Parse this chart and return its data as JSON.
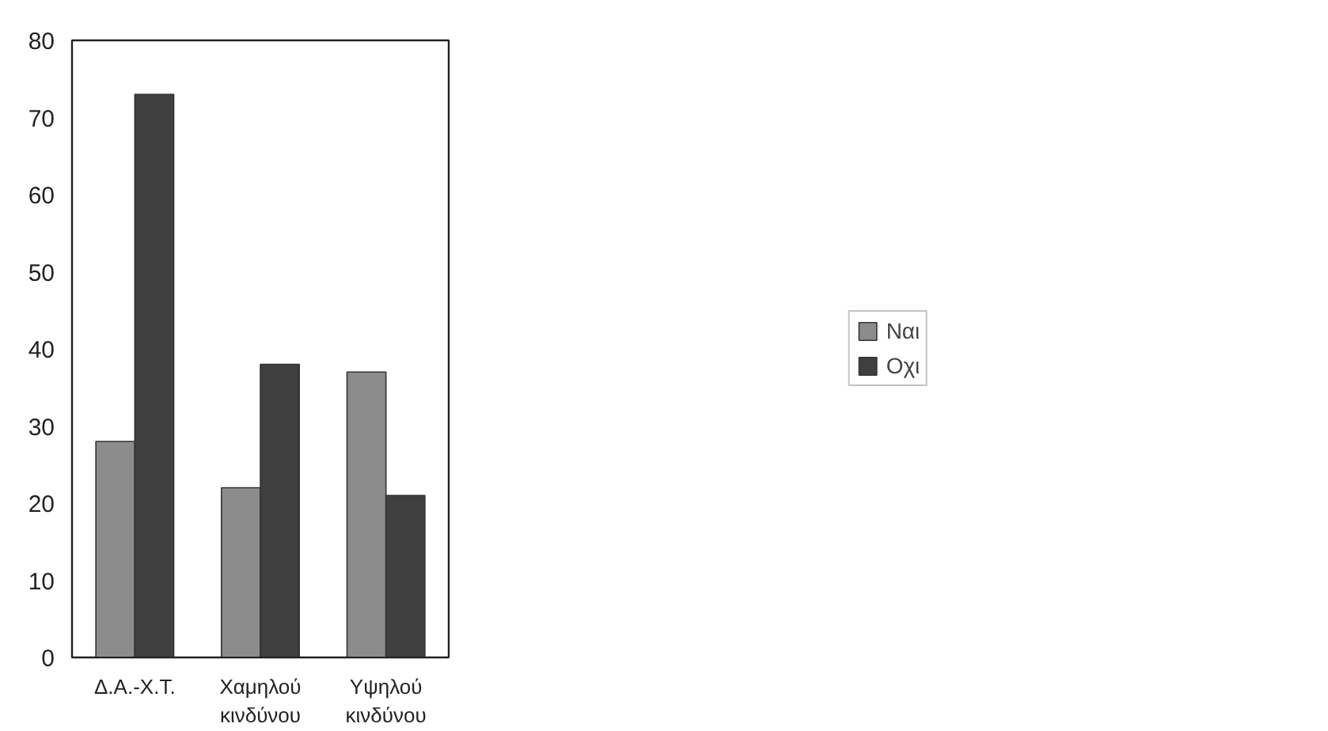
{
  "chart_data": {
    "type": "bar",
    "categories": [
      "Δ.Α.-Χ.Τ.",
      "Χαμηλού\nκινδύνου",
      "Υψηλού\nκινδύνου"
    ],
    "series": [
      {
        "name": "Ναι",
        "color": "#8c8c8c",
        "values": [
          28,
          22,
          37
        ]
      },
      {
        "name": "Οχι",
        "color": "#3f3f3f",
        "values": [
          73,
          38,
          21
        ]
      }
    ],
    "ylim": [
      0,
      80
    ],
    "yticks": [
      0,
      10,
      20,
      30,
      40,
      50,
      60,
      70,
      80
    ],
    "grid": false,
    "legend": "right"
  }
}
